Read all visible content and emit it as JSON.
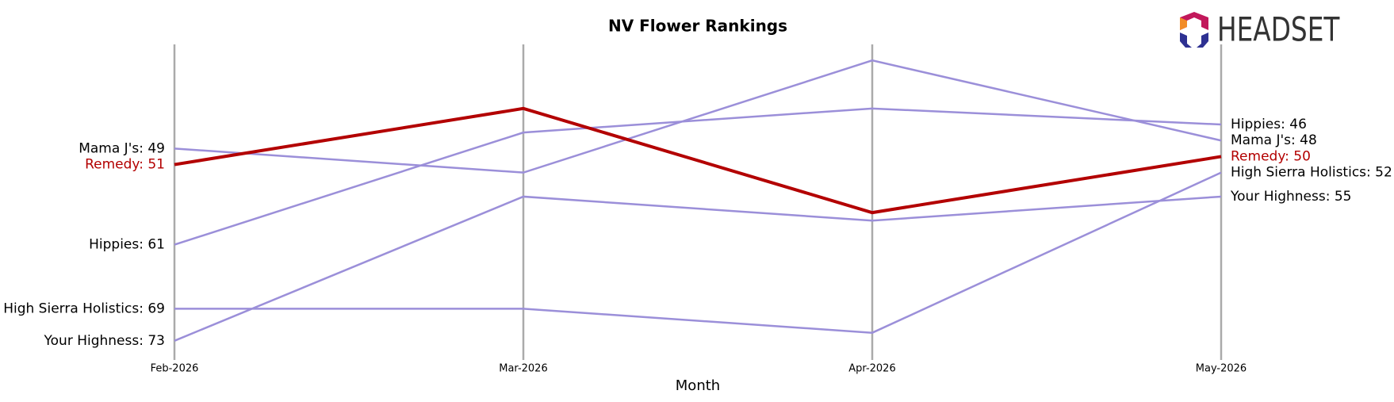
{
  "chart_data": {
    "type": "line",
    "title": "NV Flower Rankings",
    "x_label": "Month",
    "logo": "HEADSET",
    "categories": [
      "Feb-2026",
      "Mar-2026",
      "Apr-2026",
      "May-2026"
    ],
    "ylim": [
      75,
      36
    ],
    "y_inverted": true,
    "grid": true,
    "series": [
      {
        "name": "Mama J's",
        "color": "#9b8fd9",
        "values": [
          49,
          52,
          38,
          48
        ],
        "value_labels": [
          "Mama J's: 49",
          null,
          null,
          "Mama J's: 48"
        ]
      },
      {
        "name": "Hippies",
        "color": "#9b8fd9",
        "values": [
          61,
          47,
          44,
          46
        ],
        "value_labels": [
          "Hippies: 61",
          null,
          null,
          "Hippies: 46"
        ]
      },
      {
        "name": "High Sierra Holistics",
        "color": "#9b8fd9",
        "values": [
          69,
          69,
          72,
          52
        ],
        "value_labels": [
          "High Sierra Holistics: 69",
          null,
          null,
          "High Sierra Holistics: 52"
        ]
      },
      {
        "name": "Your Highness",
        "color": "#9b8fd9",
        "values": [
          73,
          55,
          58,
          55
        ],
        "value_labels": [
          "Your Highness: 73",
          null,
          null,
          "Your Highness: 55"
        ]
      },
      {
        "name": "Remedy",
        "color": "#b30000",
        "values": [
          51,
          44,
          57,
          50
        ],
        "value_labels": [
          "Remedy: 51",
          null,
          null,
          "Remedy: 50"
        ]
      }
    ]
  }
}
